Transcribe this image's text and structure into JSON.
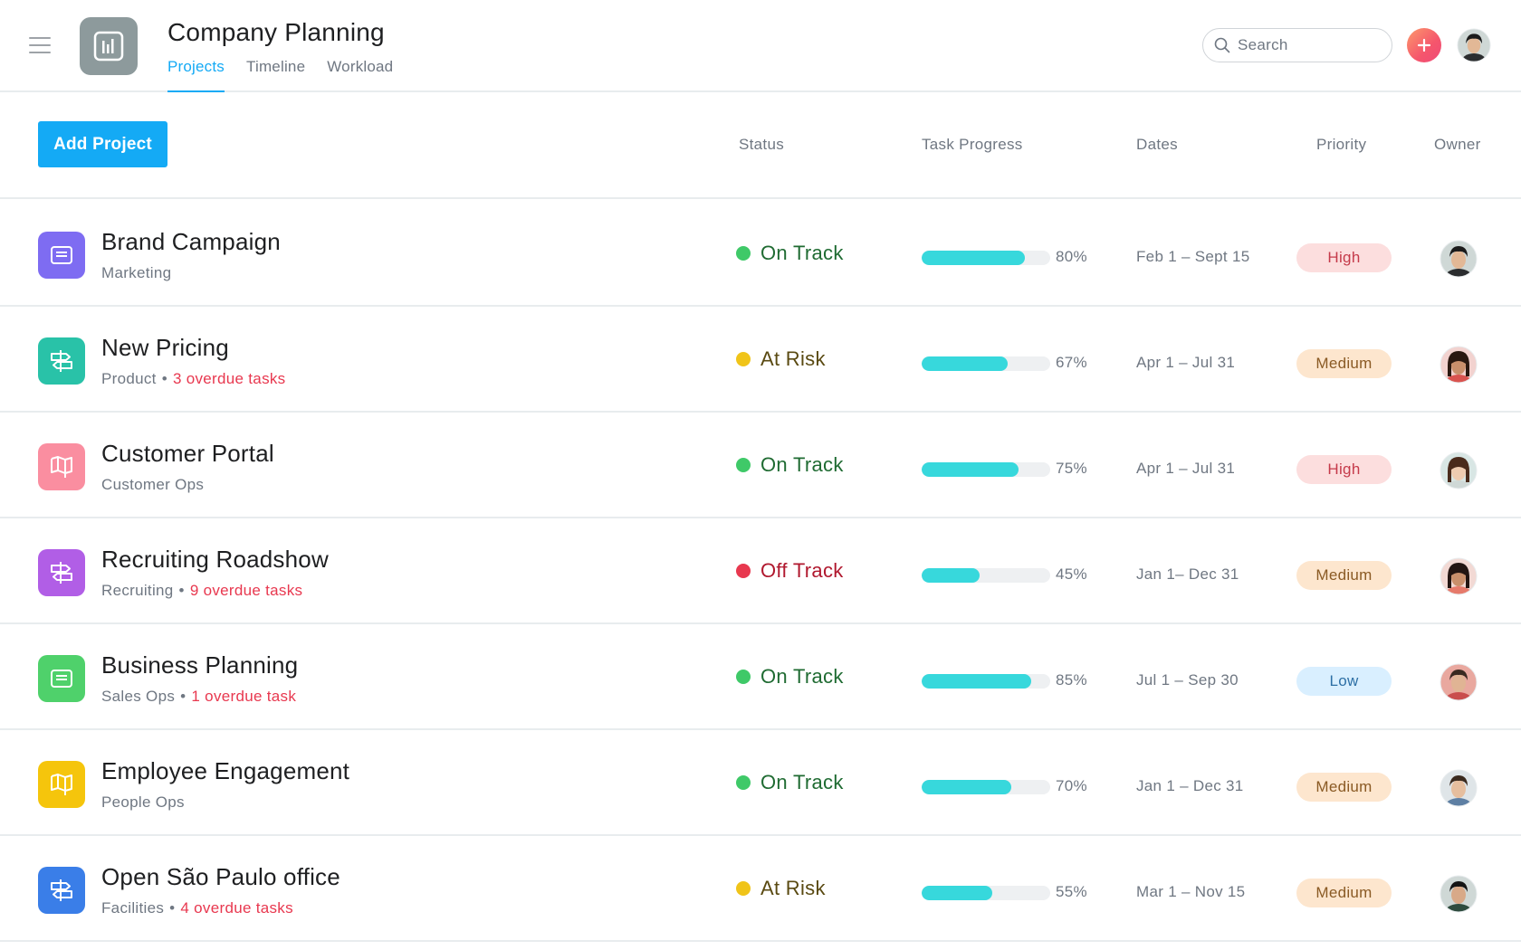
{
  "header": {
    "title": "Company Planning",
    "tabs": [
      {
        "label": "Projects",
        "active": true
      },
      {
        "label": "Timeline",
        "active": false
      },
      {
        "label": "Workload",
        "active": false
      }
    ],
    "search_placeholder": "Search",
    "app_icon": "bar-chart-icon",
    "menu_icon": "hamburger-icon",
    "plus_icon": "plus-icon"
  },
  "toolbar": {
    "add_label": "Add Project"
  },
  "columns": {
    "status": "Status",
    "progress": "Task Progress",
    "dates": "Dates",
    "priority": "Priority",
    "owner": "Owner"
  },
  "colors": {
    "accent": "#14aaf5",
    "on_track": "#3fc968",
    "at_risk": "#f0c419",
    "off_track": "#e8384f",
    "progress": "#37d8dc"
  },
  "projects": [
    {
      "name": "Brand Campaign",
      "team": "Marketing",
      "overdue": "",
      "status": "On Track",
      "progress": 0.8,
      "progress_label": "80%",
      "dates": "Feb 1 – Sept 15",
      "priority": "High",
      "icon": "board-icon",
      "icon_color": "#7e6cf2"
    },
    {
      "name": "New Pricing",
      "team": "Product",
      "overdue": "3 overdue tasks",
      "status": "At Risk",
      "progress": 0.67,
      "progress_label": "67%",
      "dates": "Apr 1 – Jul 31",
      "priority": "Medium",
      "icon": "signpost-icon",
      "icon_color": "#29c2a8"
    },
    {
      "name": "Customer Portal",
      "team": "Customer Ops",
      "overdue": "",
      "status": "On Track",
      "progress": 0.75,
      "progress_label": "75%",
      "dates": "Apr 1 – Jul 31",
      "priority": "High",
      "icon": "map-icon",
      "icon_color": "#fa8ea0"
    },
    {
      "name": "Recruiting Roadshow",
      "team": "Recruiting",
      "overdue": "9 overdue tasks",
      "status": "Off Track",
      "progress": 0.45,
      "progress_label": "45%",
      "dates": "Jan 1– Dec 31",
      "priority": "Medium",
      "icon": "signpost-icon",
      "icon_color": "#b15ee6"
    },
    {
      "name": "Business Planning",
      "team": "Sales Ops",
      "overdue": "1 overdue task",
      "status": "On Track",
      "progress": 0.85,
      "progress_label": "85%",
      "dates": "Jul 1 – Sep 30",
      "priority": "Low",
      "icon": "board-icon",
      "icon_color": "#4fd16b"
    },
    {
      "name": "Employee Engagement",
      "team": "People Ops",
      "overdue": "",
      "status": "On Track",
      "progress": 0.7,
      "progress_label": "70%",
      "dates": "Jan 1 – Dec 31",
      "priority": "Medium",
      "icon": "map-icon",
      "icon_color": "#f5c50c"
    },
    {
      "name": "Open São Paulo office",
      "team": "Facilities",
      "overdue": "4 overdue tasks",
      "status": "At Risk",
      "progress": 0.55,
      "progress_label": "55%",
      "dates": "Mar 1 – Nov 15",
      "priority": "Medium",
      "icon": "signpost-icon",
      "icon_color": "#3a7ee8"
    }
  ]
}
